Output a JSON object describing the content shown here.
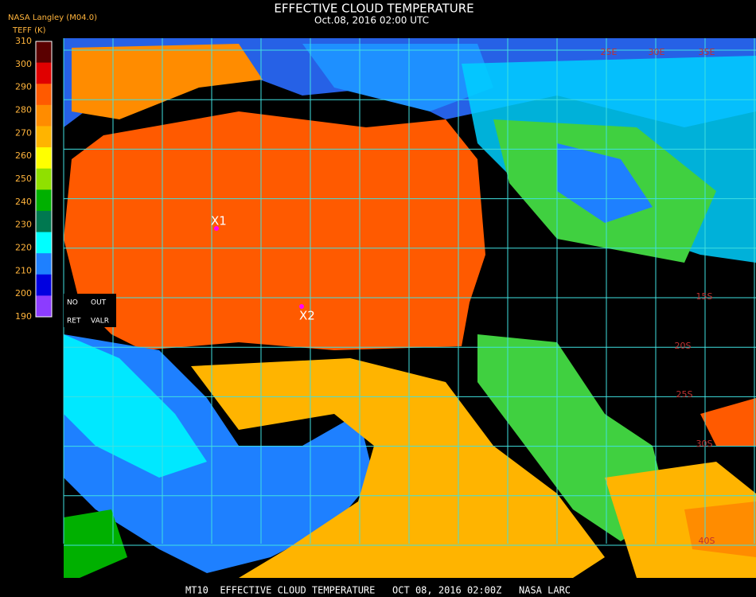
{
  "header": {
    "title": "EFFECTIVE CLOUD TEMPERATURE",
    "subtitle": "Oct.08, 2016 02:00 UTC",
    "source": "NASA Langley (M04.0)"
  },
  "colorbar": {
    "label": "TEFF (K)",
    "ticks": [
      310,
      300,
      290,
      280,
      270,
      260,
      250,
      240,
      230,
      220,
      210,
      200,
      190
    ],
    "colors": [
      "#5a0000",
      "#e00000",
      "#ff5a00",
      "#ff8c00",
      "#ffb400",
      "#ffff00",
      "#90e000",
      "#00b000",
      "#007850",
      "#00ffff",
      "#1e80ff",
      "#0000e0",
      "#8c3cff"
    ]
  },
  "key": {
    "items": [
      "NO",
      "OUT",
      "RET",
      "VALR"
    ]
  },
  "markers": [
    {
      "label": "X1"
    },
    {
      "label": "X2"
    }
  ],
  "grid_labels": {
    "top": [
      "25E",
      "30E",
      "35E"
    ],
    "right": [
      "15S",
      "20S",
      "25S",
      "30S",
      "40S"
    ]
  },
  "footer": "MT10  EFFECTIVE CLOUD TEMPERATURE   OCT 08, 2016 02:00Z   NASA LARC"
}
